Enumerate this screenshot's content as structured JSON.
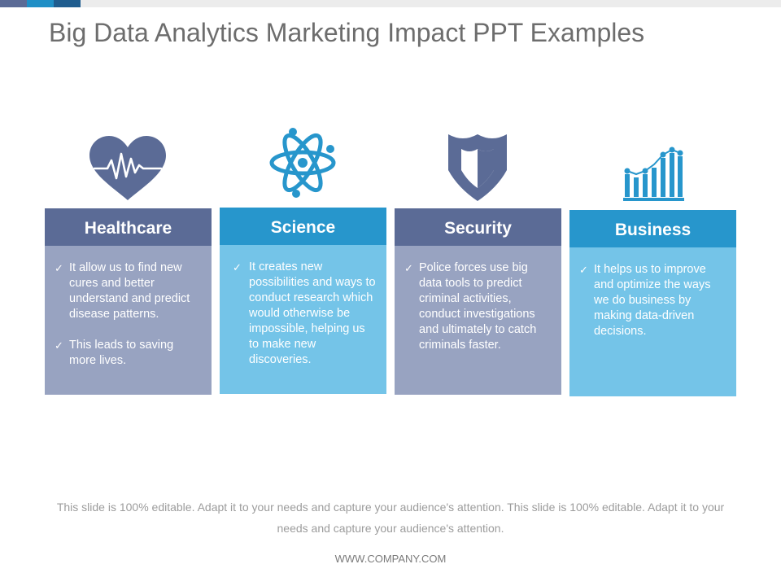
{
  "slide": {
    "title": "Big Data Analytics Marketing Impact PPT Examples",
    "footer_note": "This slide is 100% editable. Adapt it to your needs and capture your audience's attention. This slide is 100% editable. Adapt it to your needs and capture your audience's attention.",
    "footer_url": "WWW.COMPANY.COM"
  },
  "colors": {
    "dark_header": "#5b6b96",
    "dark_body": "#98a3c1",
    "light_header": "#2796cc",
    "light_body": "#74c4e8"
  },
  "cards": [
    {
      "title": "Healthcare",
      "icon": "heartbeat-icon",
      "bullets": [
        "It allow us to find new cures and better understand and predict disease patterns.",
        "This leads to saving more lives."
      ]
    },
    {
      "title": "Science",
      "icon": "atom-icon",
      "bullets": [
        "It creates new possibilities and ways to conduct research which would otherwise be impossible, helping us to make new discoveries."
      ]
    },
    {
      "title": "Security",
      "icon": "shield-icon",
      "bullets": [
        "Police forces use big data tools to predict criminal activities, conduct investigations and ultimately to catch criminals faster."
      ]
    },
    {
      "title": "Business",
      "icon": "bar-chart-icon",
      "bullets": [
        "It helps us to improve and optimize the ways we do business by making data-driven decisions."
      ]
    }
  ]
}
